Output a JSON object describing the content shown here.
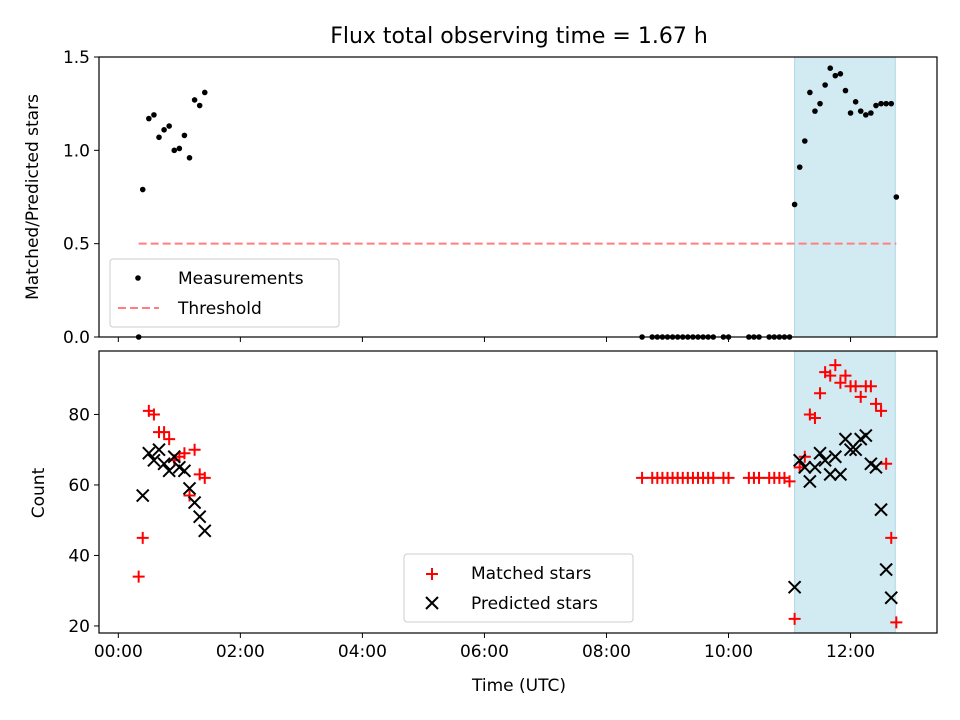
{
  "figure": {
    "title": "Flux total observing time = 1.67 h",
    "xlabel": "Time (UTC)"
  },
  "chart_data": [
    {
      "type": "scatter",
      "ylabel": "Matched/Predicted stars",
      "xlim": [
        "23:41",
        "13:25"
      ],
      "ylim": [
        0,
        1.5
      ],
      "yticks": [
        0.0,
        0.5,
        1.0,
        1.5
      ],
      "ytick_labels": [
        "0.0",
        "0.5",
        "1.0",
        "1.5"
      ],
      "grid": false,
      "legend": "lower-left",
      "shaded_region": {
        "x": [
          "11:05",
          "12:44"
        ],
        "color": "#add8e6"
      },
      "series": [
        {
          "name": "Measurements",
          "marker": "dot",
          "color": "#000000",
          "points": [
            [
              "00:20",
              0.0
            ],
            [
              "00:24",
              0.79
            ],
            [
              "00:30",
              1.17
            ],
            [
              "00:35",
              1.19
            ],
            [
              "00:40",
              1.07
            ],
            [
              "00:45",
              1.11
            ],
            [
              "00:50",
              1.13
            ],
            [
              "00:55",
              1.0
            ],
            [
              "01:00",
              1.01
            ],
            [
              "01:05",
              1.08
            ],
            [
              "01:10",
              0.96
            ],
            [
              "01:15",
              1.27
            ],
            [
              "01:20",
              1.24
            ],
            [
              "01:25",
              1.31
            ],
            [
              "08:35",
              0.0
            ],
            [
              "08:45",
              0.0
            ],
            [
              "08:50",
              0.0
            ],
            [
              "08:55",
              0.0
            ],
            [
              "09:00",
              0.0
            ],
            [
              "09:05",
              0.0
            ],
            [
              "09:10",
              0.0
            ],
            [
              "09:15",
              0.0
            ],
            [
              "09:20",
              0.0
            ],
            [
              "09:25",
              0.0
            ],
            [
              "09:30",
              0.0
            ],
            [
              "09:35",
              0.0
            ],
            [
              "09:40",
              0.0
            ],
            [
              "09:45",
              0.0
            ],
            [
              "09:55",
              0.0
            ],
            [
              "10:00",
              0.0
            ],
            [
              "10:20",
              0.0
            ],
            [
              "10:25",
              0.0
            ],
            [
              "10:30",
              0.0
            ],
            [
              "10:40",
              0.0
            ],
            [
              "10:45",
              0.0
            ],
            [
              "10:50",
              0.0
            ],
            [
              "10:55",
              0.0
            ],
            [
              "11:00",
              0.0
            ],
            [
              "11:05",
              0.71
            ],
            [
              "11:10",
              0.91
            ],
            [
              "11:15",
              1.05
            ],
            [
              "11:20",
              1.31
            ],
            [
              "11:25",
              1.21
            ],
            [
              "11:30",
              1.25
            ],
            [
              "11:35",
              1.35
            ],
            [
              "11:40",
              1.44
            ],
            [
              "11:45",
              1.4
            ],
            [
              "11:50",
              1.41
            ],
            [
              "11:55",
              1.32
            ],
            [
              "12:00",
              1.2
            ],
            [
              "12:05",
              1.26
            ],
            [
              "12:10",
              1.21
            ],
            [
              "12:15",
              1.19
            ],
            [
              "12:20",
              1.2
            ],
            [
              "12:25",
              1.24
            ],
            [
              "12:30",
              1.25
            ],
            [
              "12:35",
              1.25
            ],
            [
              "12:40",
              1.25
            ],
            [
              "12:45",
              0.75
            ]
          ]
        },
        {
          "name": "Threshold",
          "marker": "dashed-line",
          "color": "#ff7f7f",
          "points": [
            [
              "00:20",
              0.5
            ],
            [
              "12:45",
              0.5
            ]
          ]
        }
      ]
    },
    {
      "type": "scatter",
      "ylabel": "Count",
      "xlabel": "Time (UTC)",
      "xlim": [
        "23:41",
        "13:25"
      ],
      "ylim": [
        18,
        98
      ],
      "yticks": [
        20,
        40,
        60,
        80
      ],
      "ytick_labels": [
        "20",
        "40",
        "60",
        "80"
      ],
      "xticks": [
        "00:00",
        "02:00",
        "04:00",
        "06:00",
        "08:00",
        "10:00",
        "12:00"
      ],
      "grid": false,
      "legend": "lower-center",
      "shaded_region": {
        "x": [
          "11:05",
          "12:44"
        ],
        "color": "#add8e6"
      },
      "series": [
        {
          "name": "Matched stars",
          "marker": "plus",
          "color": "#ff0000",
          "points": [
            [
              "00:20",
              34
            ],
            [
              "00:24",
              45
            ],
            [
              "00:30",
              81
            ],
            [
              "00:35",
              80
            ],
            [
              "00:40",
              75
            ],
            [
              "00:45",
              75
            ],
            [
              "00:50",
              73
            ],
            [
              "00:55",
              67
            ],
            [
              "01:00",
              68
            ],
            [
              "01:05",
              69
            ],
            [
              "01:10",
              57
            ],
            [
              "01:15",
              70
            ],
            [
              "01:20",
              63
            ],
            [
              "01:25",
              62
            ],
            [
              "08:35",
              62
            ],
            [
              "08:45",
              62
            ],
            [
              "08:50",
              62
            ],
            [
              "08:55",
              62
            ],
            [
              "09:00",
              62
            ],
            [
              "09:05",
              62
            ],
            [
              "09:10",
              62
            ],
            [
              "09:15",
              62
            ],
            [
              "09:20",
              62
            ],
            [
              "09:25",
              62
            ],
            [
              "09:30",
              62
            ],
            [
              "09:35",
              62
            ],
            [
              "09:40",
              62
            ],
            [
              "09:45",
              62
            ],
            [
              "09:55",
              62
            ],
            [
              "10:00",
              62
            ],
            [
              "10:20",
              62
            ],
            [
              "10:25",
              62
            ],
            [
              "10:30",
              62
            ],
            [
              "10:40",
              62
            ],
            [
              "10:45",
              62
            ],
            [
              "10:50",
              62
            ],
            [
              "10:55",
              62
            ],
            [
              "11:00",
              61
            ],
            [
              "11:05",
              22
            ],
            [
              "11:10",
              65
            ],
            [
              "11:15",
              68
            ],
            [
              "11:20",
              80
            ],
            [
              "11:25",
              79
            ],
            [
              "11:30",
              86
            ],
            [
              "11:35",
              92
            ],
            [
              "11:40",
              91
            ],
            [
              "11:45",
              94
            ],
            [
              "11:50",
              89
            ],
            [
              "11:55",
              91
            ],
            [
              "12:00",
              88
            ],
            [
              "12:05",
              88
            ],
            [
              "12:10",
              85
            ],
            [
              "12:15",
              88
            ],
            [
              "12:20",
              88
            ],
            [
              "12:25",
              83
            ],
            [
              "12:30",
              81
            ],
            [
              "12:35",
              66
            ],
            [
              "12:40",
              45
            ],
            [
              "12:45",
              21
            ]
          ]
        },
        {
          "name": "Predicted stars",
          "marker": "x",
          "color": "#000000",
          "points": [
            [
              "00:24",
              57
            ],
            [
              "00:30",
              69
            ],
            [
              "00:35",
              67
            ],
            [
              "00:40",
              70
            ],
            [
              "00:45",
              66
            ],
            [
              "00:50",
              64
            ],
            [
              "00:55",
              68
            ],
            [
              "01:00",
              65
            ],
            [
              "01:05",
              64
            ],
            [
              "01:10",
              59
            ],
            [
              "01:15",
              55
            ],
            [
              "01:20",
              51
            ],
            [
              "01:25",
              47
            ],
            [
              "11:05",
              31
            ],
            [
              "11:10",
              67
            ],
            [
              "11:15",
              65
            ],
            [
              "11:20",
              61
            ],
            [
              "11:25",
              65
            ],
            [
              "11:30",
              69
            ],
            [
              "11:35",
              67
            ],
            [
              "11:40",
              63
            ],
            [
              "11:45",
              68
            ],
            [
              "11:50",
              63
            ],
            [
              "11:55",
              73
            ],
            [
              "12:00",
              70
            ],
            [
              "12:05",
              70
            ],
            [
              "12:10",
              73
            ],
            [
              "12:15",
              74
            ],
            [
              "12:20",
              66
            ],
            [
              "12:25",
              65
            ],
            [
              "12:30",
              53
            ],
            [
              "12:35",
              36
            ],
            [
              "12:40",
              28
            ]
          ]
        }
      ]
    }
  ]
}
